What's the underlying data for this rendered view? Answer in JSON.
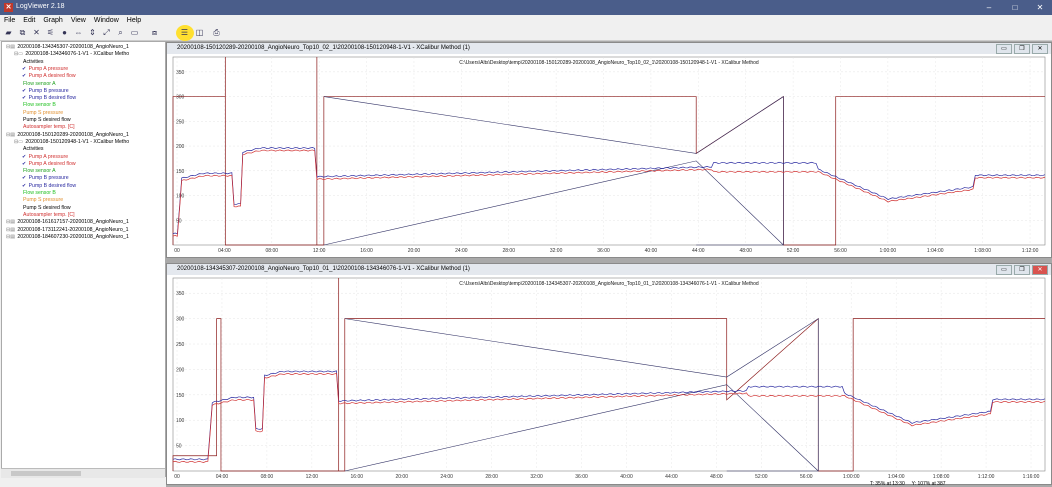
{
  "app": {
    "title": "LogViewer 2.18",
    "icon": "app-x-icon"
  },
  "window_controls": {
    "minimize": "–",
    "maximize": "□",
    "close": "✕"
  },
  "menu": [
    "File",
    "Edit",
    "Graph",
    "View",
    "Window",
    "Help"
  ],
  "tree": [
    {
      "label": "20200108-134345307-20200108_AngioNeuro_1",
      "indent": 0,
      "color": "#000",
      "check": false
    },
    {
      "label": "20200108-134346076-1-V1 - XCalibur Metho",
      "indent": 1,
      "color": "#000",
      "check": false
    },
    {
      "label": "Activities",
      "indent": 2,
      "color": "#000",
      "check": false
    },
    {
      "label": "Pump A pressure",
      "indent": 2,
      "color": "#d03030",
      "check": true
    },
    {
      "label": "Pump A desired flow",
      "indent": 2,
      "color": "#d03030",
      "check": true
    },
    {
      "label": "Flow sensor A",
      "indent": 2,
      "color": "#20a020",
      "check": false
    },
    {
      "label": "Pump B pressure",
      "indent": 2,
      "color": "#2a2aa0",
      "check": true
    },
    {
      "label": "Pump B desired flow",
      "indent": 2,
      "color": "#2a2aa0",
      "check": true
    },
    {
      "label": "Flow sensor B",
      "indent": 2,
      "color": "#20c020",
      "check": false
    },
    {
      "label": "Pump S pressure",
      "indent": 2,
      "color": "#e09030",
      "check": false
    },
    {
      "label": "Pump S desired flow",
      "indent": 2,
      "color": "#000",
      "check": false
    },
    {
      "label": "Autosampler temp. [C]",
      "indent": 2,
      "color": "#d03030",
      "check": false
    },
    {
      "label": "20200108-150120289-20200108_AngioNeuro_1",
      "indent": 0,
      "color": "#000",
      "check": false
    },
    {
      "label": "20200108-150120948-1-V1 - XCalibur Metho",
      "indent": 1,
      "color": "#000",
      "check": false
    },
    {
      "label": "Activities",
      "indent": 2,
      "color": "#000",
      "check": false
    },
    {
      "label": "Pump A pressure",
      "indent": 2,
      "color": "#d03030",
      "check": true
    },
    {
      "label": "Pump A desired flow",
      "indent": 2,
      "color": "#d03030",
      "check": true
    },
    {
      "label": "Flow sensor A",
      "indent": 2,
      "color": "#20a020",
      "check": false
    },
    {
      "label": "Pump B pressure",
      "indent": 2,
      "color": "#2a2aa0",
      "check": true
    },
    {
      "label": "Pump B desired flow",
      "indent": 2,
      "color": "#2a2aa0",
      "check": true
    },
    {
      "label": "Flow sensor B",
      "indent": 2,
      "color": "#20c020",
      "check": false
    },
    {
      "label": "Pump S pressure",
      "indent": 2,
      "color": "#e09030",
      "check": false
    },
    {
      "label": "Pump S desired flow",
      "indent": 2,
      "color": "#000",
      "check": false
    },
    {
      "label": "Autosampler temp. [C]",
      "indent": 2,
      "color": "#d03030",
      "check": false
    },
    {
      "label": "20200108-161617157-20200108_AngioNeuro_1",
      "indent": 0,
      "color": "#000",
      "check": false
    },
    {
      "label": "20200108-173112241-20200108_AngioNeuro_1",
      "indent": 0,
      "color": "#000",
      "check": false
    },
    {
      "label": "20200108-184607230-20200108_AngioNeuro_1",
      "indent": 0,
      "color": "#000",
      "check": false
    }
  ],
  "windows": [
    {
      "title": "20200108-150120289-20200108_AngioNeuro_Top10_02_1\\20200108-150120948-1-V1 - XCalibur Method  (1)",
      "path": "C:\\Users\\Alts\\Desktop\\temp\\20200108-150120289-20200108_AngioNeuro_Top10_02_1\\20200108-150120948-1-V1 - XCalibur Method",
      "yticks": [
        "350",
        "300",
        "250",
        "200",
        "150",
        "100",
        "50"
      ],
      "xticks": [
        "00",
        "04:00",
        "08:00",
        "12:00",
        "16:00",
        "20:00",
        "24:00",
        "28:00",
        "32:00",
        "36:00",
        "40:00",
        "44:00",
        "48:00",
        "52:00",
        "56:00",
        "1:00:00",
        "1:04:00",
        "1:08:00",
        "1:12:00"
      ]
    },
    {
      "title": "20200108-134345307-20200108_AngioNeuro_Top10_01_1\\20200108-134346076-1-V1 - XCalibur Method  (1)",
      "path": "C:\\Users\\Alts\\Desktop\\temp\\20200108-134345307-20200108_AngioNeuro_Top10_01_1\\20200108-134346076-1-V1 - XCalibur Method",
      "yticks": [
        "350",
        "300",
        "250",
        "200",
        "150",
        "100",
        "50"
      ],
      "xticks": [
        "00",
        "04:00",
        "08:00",
        "12:00",
        "16:00",
        "20:00",
        "24:00",
        "28:00",
        "32:00",
        "36:00",
        "40:00",
        "44:00",
        "48:00",
        "52:00",
        "56:00",
        "1:00:00",
        "1:04:00",
        "1:08:00",
        "1:12:00",
        "1:16:00"
      ]
    }
  ],
  "status": {
    "left": "T: 35% at 13:30",
    "right": "Y: 107% at 387"
  },
  "colors": {
    "pumpA": "#d03030",
    "pumpB": "#2a2aa0",
    "highlight": "#ffe030"
  }
}
